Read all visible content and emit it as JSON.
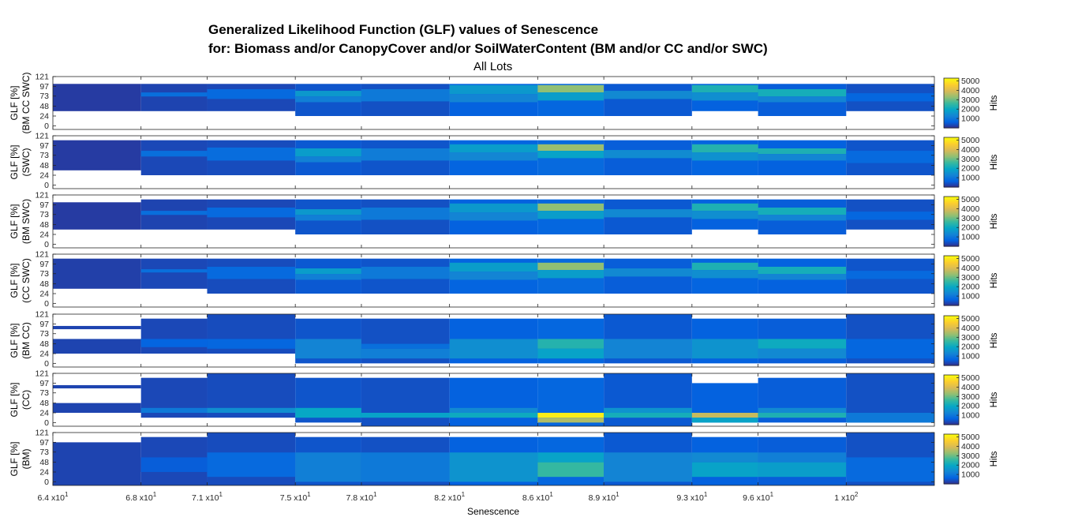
{
  "chart_data": {
    "type": "heatmap",
    "title": "Generalized Likelihood Function (GLF) values of Senescence",
    "title_line2": "for: Biomass and/or CanopyCover and/or SoilWaterContent (BM and/or CC and/or SWC)",
    "subtitle": "All Lots",
    "xlabel": "Senescence",
    "x_edges": [
      64,
      68,
      71,
      75,
      78,
      82,
      86,
      89,
      93,
      96,
      100,
      104
    ],
    "x_tick_mantissa": [
      "6.4",
      "6.8",
      "7.1",
      "7.5",
      "7.8",
      "8.2",
      "8.6",
      "8.9",
      "9.3",
      "9.6",
      "1"
    ],
    "x_tick_exponent": [
      "1",
      "1",
      "1",
      "1",
      "1",
      "1",
      "1",
      "1",
      "1",
      "1",
      "2"
    ],
    "y_ticks": [
      "121",
      "97",
      "73",
      "48",
      "24",
      "0"
    ],
    "ylim": [
      -9,
      121
    ],
    "colorbar": {
      "label": "Hits",
      "ticks": [
        "5000",
        "4000",
        "3000",
        "2000",
        "1000"
      ],
      "range": [
        0,
        5300
      ]
    },
    "colormap": [
      "#352a87",
      "#0363e1",
      "#1485d4",
      "#06a7c6",
      "#38b99e",
      "#92bf73",
      "#d9ba56",
      "#fcce2e",
      "#f9fb0e"
    ],
    "panels": [
      {
        "ylabel": "GLF [%]",
        "ylabel2": "(BM CC SWC)",
        "cells": [
          [
            [
              36,
              103,
              200
            ]
          ],
          [
            [
              36,
              103,
              300
            ],
            [
              72,
              82,
              900
            ]
          ],
          [
            [
              36,
              103,
              350
            ],
            [
              66,
              90,
              800
            ]
          ],
          [
            [
              24,
              103,
              500
            ],
            [
              72,
              86,
              1700
            ],
            [
              58,
              72,
              1200
            ]
          ],
          [
            [
              24,
              103,
              450
            ],
            [
              60,
              90,
              1100
            ]
          ],
          [
            [
              24,
              103,
              650
            ],
            [
              78,
              100,
              1700
            ],
            [
              58,
              78,
              1300
            ]
          ],
          [
            [
              24,
              103,
              750
            ],
            [
              82,
              100,
              3300
            ],
            [
              62,
              82,
              1800
            ]
          ],
          [
            [
              24,
              103,
              550
            ],
            [
              66,
              86,
              1400
            ]
          ],
          [
            [
              36,
              103,
              650
            ],
            [
              82,
              100,
              2300
            ],
            [
              62,
              82,
              1500
            ]
          ],
          [
            [
              24,
              103,
              600
            ],
            [
              72,
              90,
              2200
            ],
            [
              58,
              72,
              1300
            ]
          ],
          [
            [
              36,
              103,
              450
            ],
            [
              60,
              80,
              750
            ]
          ]
        ]
      },
      {
        "ylabel": "GLF [%]",
        "ylabel2": "(SWC)",
        "cells": [
          [
            [
              36,
              110,
              200
            ]
          ],
          [
            [
              24,
              110,
              350
            ],
            [
              70,
              84,
              900
            ]
          ],
          [
            [
              24,
              110,
              400
            ],
            [
              60,
              92,
              850
            ]
          ],
          [
            [
              24,
              110,
              550
            ],
            [
              70,
              90,
              1800
            ],
            [
              56,
              70,
              1250
            ]
          ],
          [
            [
              24,
              110,
              500
            ],
            [
              60,
              90,
              1150
            ]
          ],
          [
            [
              24,
              110,
              700
            ],
            [
              80,
              100,
              1800
            ],
            [
              60,
              80,
              1350
            ]
          ],
          [
            [
              24,
              110,
              800
            ],
            [
              84,
              100,
              3400
            ],
            [
              66,
              84,
              1900
            ]
          ],
          [
            [
              24,
              110,
              600
            ],
            [
              66,
              86,
              1450
            ]
          ],
          [
            [
              24,
              110,
              700
            ],
            [
              80,
              100,
              2400
            ],
            [
              60,
              80,
              1550
            ]
          ],
          [
            [
              24,
              110,
              650
            ],
            [
              76,
              90,
              2300
            ],
            [
              60,
              76,
              1350
            ]
          ],
          [
            [
              24,
              110,
              500
            ],
            [
              54,
              84,
              800
            ]
          ]
        ]
      },
      {
        "ylabel": "GLF [%]",
        "ylabel2": "(BM SWC)",
        "cells": [
          [
            [
              36,
              103,
              200
            ]
          ],
          [
            [
              36,
              110,
              300
            ],
            [
              72,
              82,
              900
            ]
          ],
          [
            [
              36,
              110,
              350
            ],
            [
              66,
              90,
              800
            ]
          ],
          [
            [
              24,
              110,
              500
            ],
            [
              72,
              86,
              1700
            ],
            [
              58,
              72,
              1200
            ]
          ],
          [
            [
              24,
              110,
              450
            ],
            [
              60,
              90,
              1100
            ]
          ],
          [
            [
              24,
              110,
              650
            ],
            [
              78,
              100,
              1700
            ],
            [
              58,
              78,
              1300
            ]
          ],
          [
            [
              24,
              110,
              750
            ],
            [
              82,
              100,
              3300
            ],
            [
              62,
              82,
              1800
            ]
          ],
          [
            [
              24,
              110,
              550
            ],
            [
              66,
              86,
              1400
            ]
          ],
          [
            [
              36,
              110,
              650
            ],
            [
              82,
              100,
              2300
            ],
            [
              62,
              82,
              1500
            ]
          ],
          [
            [
              24,
              110,
              600
            ],
            [
              72,
              90,
              2200
            ],
            [
              58,
              72,
              1300
            ]
          ],
          [
            [
              36,
              110,
              450
            ],
            [
              60,
              80,
              750
            ]
          ]
        ]
      },
      {
        "ylabel": "GLF [%]",
        "ylabel2": "(CC SWC)",
        "cells": [
          [
            [
              36,
              110,
              250
            ]
          ],
          [
            [
              36,
              110,
              350
            ],
            [
              76,
              84,
              900
            ]
          ],
          [
            [
              24,
              110,
              400
            ],
            [
              60,
              90,
              800
            ]
          ],
          [
            [
              24,
              110,
              550
            ],
            [
              72,
              86,
              1800
            ],
            [
              58,
              72,
              1200
            ]
          ],
          [
            [
              24,
              110,
              500
            ],
            [
              60,
              90,
              1100
            ]
          ],
          [
            [
              24,
              110,
              700
            ],
            [
              78,
              100,
              1800
            ],
            [
              58,
              78,
              1300
            ]
          ],
          [
            [
              24,
              110,
              800
            ],
            [
              82,
              100,
              3300
            ],
            [
              62,
              82,
              1800
            ]
          ],
          [
            [
              24,
              110,
              600
            ],
            [
              66,
              86,
              1400
            ]
          ],
          [
            [
              24,
              110,
              700
            ],
            [
              82,
              100,
              2300
            ],
            [
              62,
              82,
              1500
            ]
          ],
          [
            [
              24,
              110,
              650
            ],
            [
              72,
              90,
              2200
            ],
            [
              58,
              72,
              1300
            ]
          ],
          [
            [
              24,
              110,
              500
            ],
            [
              60,
              80,
              800
            ]
          ]
        ]
      },
      {
        "ylabel": "GLF [%]",
        "ylabel2": "(BM CC)",
        "cells": [
          [
            [
              24,
              60,
              300
            ],
            [
              84,
              92,
              300
            ]
          ],
          [
            [
              24,
              110,
              350
            ],
            [
              40,
              60,
              700
            ]
          ],
          [
            [
              24,
              121,
              400
            ],
            [
              36,
              60,
              750
            ]
          ],
          [
            [
              0,
              110,
              500
            ],
            [
              12,
              60,
              1300
            ]
          ],
          [
            [
              0,
              110,
              450
            ],
            [
              36,
              48,
              900
            ],
            [
              12,
              36,
              1200
            ]
          ],
          [
            [
              0,
              110,
              650
            ],
            [
              12,
              60,
              1500
            ]
          ],
          [
            [
              0,
              110,
              750
            ],
            [
              36,
              60,
              2400
            ],
            [
              12,
              36,
              1900
            ]
          ],
          [
            [
              0,
              121,
              550
            ],
            [
              12,
              60,
              1300
            ]
          ],
          [
            [
              0,
              110,
              650
            ],
            [
              12,
              60,
              1600
            ]
          ],
          [
            [
              0,
              110,
              600
            ],
            [
              36,
              60,
              2100
            ],
            [
              12,
              36,
              1400
            ]
          ],
          [
            [
              0,
              121,
              450
            ],
            [
              12,
              60,
              750
            ]
          ]
        ]
      },
      {
        "ylabel": "GLF [%]",
        "ylabel2": "(CC)",
        "cells": [
          [
            [
              24,
              48,
              300
            ],
            [
              84,
              92,
              300
            ]
          ],
          [
            [
              12,
              110,
              350
            ],
            [
              24,
              36,
              1100
            ]
          ],
          [
            [
              12,
              121,
              400
            ],
            [
              24,
              36,
              1500
            ]
          ],
          [
            [
              0,
              110,
              500
            ],
            [
              12,
              36,
              2000
            ]
          ],
          [
            [
              -9,
              110,
              450
            ],
            [
              12,
              24,
              1900
            ]
          ],
          [
            [
              -9,
              110,
              650
            ],
            [
              12,
              24,
              2100
            ],
            [
              24,
              36,
              1400
            ]
          ],
          [
            [
              -9,
              110,
              750
            ],
            [
              12,
              24,
              5100
            ],
            [
              0,
              12,
              3600
            ]
          ],
          [
            [
              -9,
              121,
              550
            ],
            [
              12,
              24,
              2200
            ],
            [
              24,
              36,
              1600
            ]
          ],
          [
            [
              0,
              97,
              650
            ],
            [
              12,
              24,
              3800
            ],
            [
              0,
              12,
              1900
            ]
          ],
          [
            [
              0,
              110,
              600
            ],
            [
              12,
              24,
              2300
            ],
            [
              24,
              36,
              1400
            ]
          ],
          [
            [
              0,
              121,
              450
            ],
            [
              0,
              24,
              1100
            ]
          ]
        ]
      },
      {
        "ylabel": "GLF [%]",
        "ylabel2": "(BM)",
        "cells": [
          [
            [
              -9,
              97,
              300
            ]
          ],
          [
            [
              -9,
              110,
              350
            ],
            [
              24,
              60,
              600
            ]
          ],
          [
            [
              -9,
              121,
              400
            ],
            [
              12,
              72,
              800
            ]
          ],
          [
            [
              -9,
              110,
              500
            ],
            [
              0,
              72,
              1200
            ]
          ],
          [
            [
              -9,
              110,
              450
            ],
            [
              0,
              72,
              1100
            ]
          ],
          [
            [
              -9,
              110,
              650
            ],
            [
              0,
              72,
              1600
            ]
          ],
          [
            [
              -9,
              110,
              750
            ],
            [
              12,
              48,
              2600
            ],
            [
              48,
              72,
              1900
            ]
          ],
          [
            [
              -9,
              121,
              550
            ],
            [
              0,
              72,
              1300
            ]
          ],
          [
            [
              -9,
              110,
              650
            ],
            [
              12,
              48,
              1900
            ],
            [
              48,
              72,
              1400
            ]
          ],
          [
            [
              -9,
              110,
              600
            ],
            [
              12,
              48,
              1800
            ],
            [
              48,
              72,
              1200
            ]
          ],
          [
            [
              -9,
              121,
              450
            ],
            [
              0,
              60,
              800
            ]
          ]
        ]
      }
    ]
  }
}
